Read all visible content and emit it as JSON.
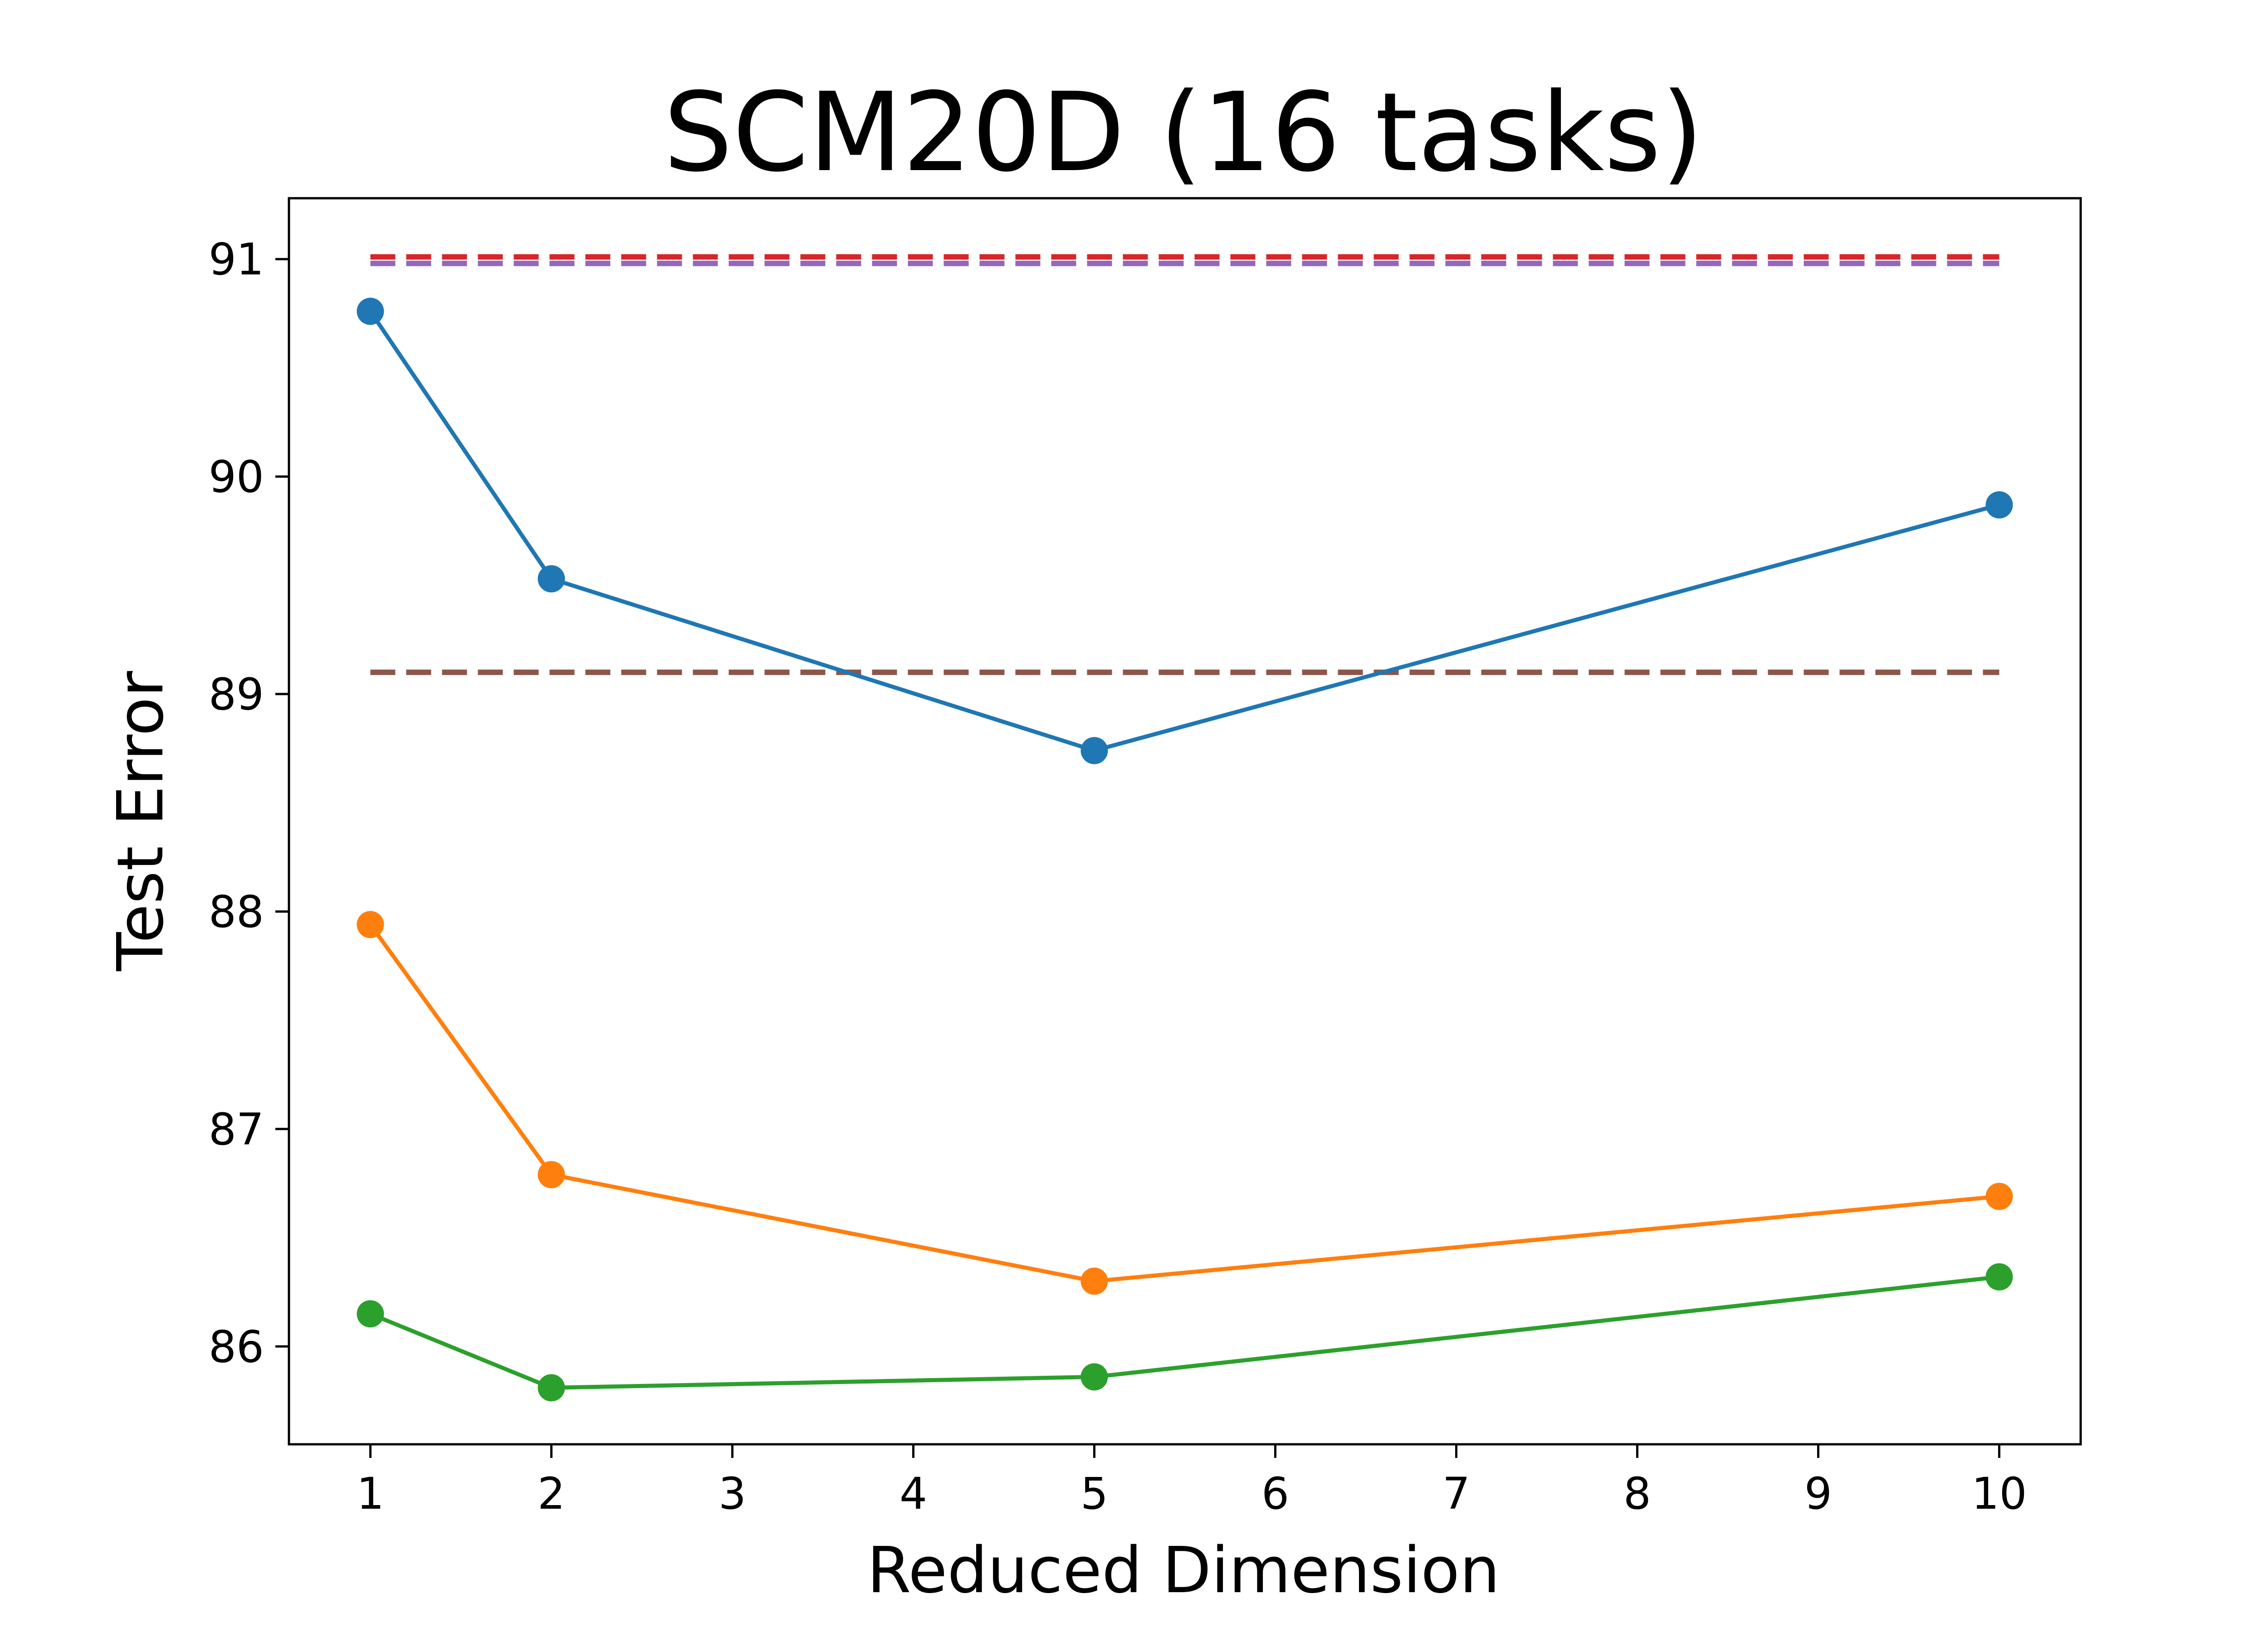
{
  "chart_data": {
    "type": "line",
    "title": "SCM20D (16 tasks)",
    "xlabel": "Reduced Dimension",
    "ylabel": "Test Error",
    "xlim": [
      0.55,
      10.45
    ],
    "ylim": [
      85.55,
      91.28
    ],
    "xticks": [
      1,
      2,
      3,
      4,
      5,
      6,
      7,
      8,
      9,
      10
    ],
    "yticks": [
      86,
      87,
      88,
      89,
      90,
      91
    ],
    "grid": false,
    "legend": "none",
    "series": [
      {
        "color": "#1f77b4",
        "style": "solid",
        "marker": "circle",
        "x": [
          1,
          2,
          5,
          10
        ],
        "y": [
          90.76,
          89.53,
          88.74,
          89.87
        ]
      },
      {
        "color": "#ff7f0e",
        "style": "solid",
        "marker": "circle",
        "x": [
          1,
          2,
          5,
          10
        ],
        "y": [
          87.94,
          86.79,
          86.3,
          86.69
        ]
      },
      {
        "color": "#2ca02c",
        "style": "solid",
        "marker": "circle",
        "x": [
          1,
          2,
          5,
          10
        ],
        "y": [
          86.15,
          85.81,
          85.86,
          86.32
        ]
      },
      {
        "color": "#d62728",
        "style": "dashed",
        "marker": "none",
        "x": [
          1,
          10
        ],
        "y": [
          91.01,
          91.01
        ]
      },
      {
        "color": "#9467bd",
        "style": "dashed",
        "marker": "none",
        "x": [
          1,
          10
        ],
        "y": [
          90.98,
          90.98
        ]
      },
      {
        "color": "#8c564b",
        "style": "dashed",
        "marker": "none",
        "x": [
          1,
          10
        ],
        "y": [
          89.1,
          89.1
        ]
      }
    ]
  }
}
